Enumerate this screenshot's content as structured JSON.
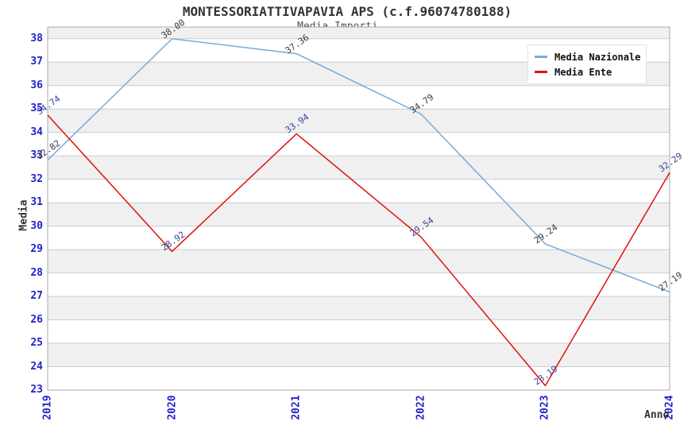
{
  "header": {
    "title": "MONTESSORIATTIVAPAVIA APS (c.f.96074780188)",
    "subtitle": "Media Importi"
  },
  "chart_data": {
    "type": "line",
    "title": "MONTESSORIATTIVAPAVIA APS (c.f.96074780188)",
    "subtitle": "Media Importi",
    "xlabel": "Anno",
    "ylabel": "Media",
    "x": [
      "2019",
      "2020",
      "2021",
      "2022",
      "2023",
      "2024"
    ],
    "series": [
      {
        "name": "Media Nazionale",
        "color": "#74AADF",
        "label_color": "#3A3A3A",
        "values": [
          32.82,
          38.0,
          37.36,
          34.79,
          29.24,
          27.19
        ]
      },
      {
        "name": "Media Ente",
        "color": "#DD1111",
        "label_color": "#334499",
        "values": [
          34.74,
          28.92,
          33.94,
          29.54,
          23.19,
          32.29
        ]
      }
    ],
    "ylim": [
      23,
      38.5
    ],
    "yticks": [
      23,
      24,
      25,
      26,
      27,
      28,
      29,
      30,
      31,
      32,
      33,
      34,
      35,
      36,
      37,
      38
    ],
    "grid": "horizontal-bands",
    "legend_position": "top-right",
    "colors": {
      "tick_label": "#2222CC",
      "band_gray": "#F0F0F0",
      "gridline": "#CCCCCC",
      "frame": "#AAAAAA",
      "title": "#333333",
      "subtitle": "#555555"
    }
  }
}
